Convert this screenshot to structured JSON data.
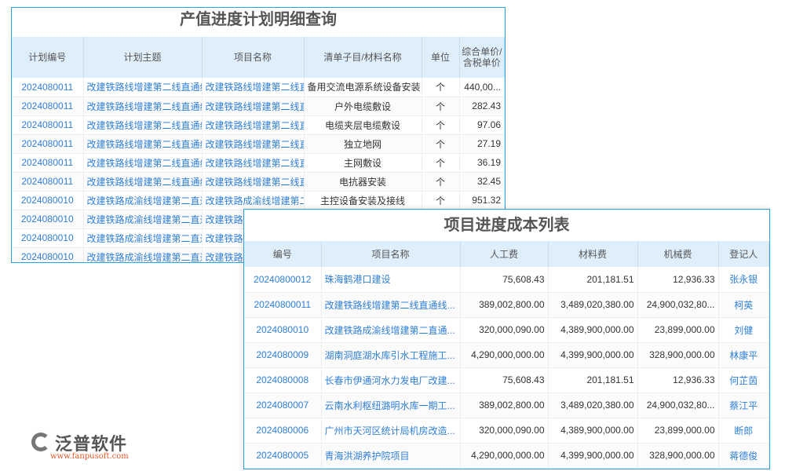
{
  "plan": {
    "title": "产值进度计划明细查询",
    "headers": [
      "计划编号",
      "计划主题",
      "项目名称",
      "清单子目/材料名称",
      "单位",
      "综合单价/含税单价"
    ],
    "rows": [
      [
        "2024080011",
        "改建铁路线增建第二线直通线",
        "改建铁路线增建第二线直通",
        "备用交流电源系统设备安装",
        "个",
        "440,00..."
      ],
      [
        "2024080011",
        "改建铁路线增建第二线直通线",
        "改建铁路线增建第二线直通",
        "户外电缆敷设",
        "个",
        "282.43"
      ],
      [
        "2024080011",
        "改建铁路线增建第二线直通线",
        "改建铁路线增建第二线直通",
        "电缆夹层电缆敷设",
        "个",
        "97.06"
      ],
      [
        "2024080011",
        "改建铁路线增建第二线直通线",
        "改建铁路线增建第二线直通",
        "独立地网",
        "个",
        "27.19"
      ],
      [
        "2024080011",
        "改建铁路线增建第二线直通线",
        "改建铁路线增建第二线直通",
        "主网敷设",
        "个",
        "36.19"
      ],
      [
        "2024080011",
        "改建铁路线增建第二线直通线",
        "改建铁路线增建第二线直通",
        "电抗器安装",
        "个",
        "32.45"
      ],
      [
        "2024080010",
        "改建铁路成渝线增建第二直通",
        "改建铁路成渝线增建第二直",
        "主控设备安装及接线",
        "个",
        "951.32"
      ],
      [
        "2024080010",
        "改建铁路成渝线增建第二直通",
        "改建铁路成渝线增建第二直",
        "",
        "",
        ""
      ],
      [
        "2024080010",
        "改建铁路成渝线增建第二直通",
        "改建铁路成渝线增建第二直",
        "",
        "",
        ""
      ],
      [
        "2024080010",
        "改建铁路成渝线增建第二直通",
        "改建铁路成渝线增建第二直",
        "",
        "",
        ""
      ]
    ]
  },
  "cost": {
    "title": "项目进度成本列表",
    "headers": [
      "编号",
      "项目名称",
      "人工费",
      "材料费",
      "机械费",
      "登记人"
    ],
    "rows": [
      [
        "20240800012",
        "珠海鹤港口建设",
        "75,608.43",
        "201,181.51",
        "12,936.33",
        "张永银"
      ],
      [
        "20240800011",
        "改建铁路线增建第二线直通线...",
        "389,002,800.00",
        "3,489,020,380.00",
        "24,900,032,80...",
        "柯英"
      ],
      [
        "2024080010",
        "改建铁路成渝线增建第二直通...",
        "320,000,090.00",
        "4,389,900,000.00",
        "23,899,000.00",
        "刘健"
      ],
      [
        "2024080009",
        "湖南洞庭湖水库引水工程施工...",
        "4,290,000,000.00",
        "4,399,900,000.00",
        "328,900,000.00",
        "林康平"
      ],
      [
        "2024080008",
        "长春市伊通河水力发电厂改建...",
        "75,608.43",
        "201,181.51",
        "12,936.33",
        "何芷茵"
      ],
      [
        "2024080007",
        "云南水利枢纽潞明水库一期工...",
        "389,002,800.00",
        "3,489,020,380.00",
        "24,900,032,80...",
        "蔡江平"
      ],
      [
        "2024080006",
        "广州市天河区统计局机房改造...",
        "320,000,090.00",
        "4,389,900,000.00",
        "23,899,000.00",
        "断郎"
      ],
      [
        "2024080005",
        "青海洪湖养护院项目",
        "4,290,000,000.00",
        "4,399,900,000.00",
        "328,900,000.00",
        "蒋德俊"
      ]
    ]
  },
  "watermark": {
    "brand": "泛普软件",
    "url": "www.fanpusoft.com"
  }
}
